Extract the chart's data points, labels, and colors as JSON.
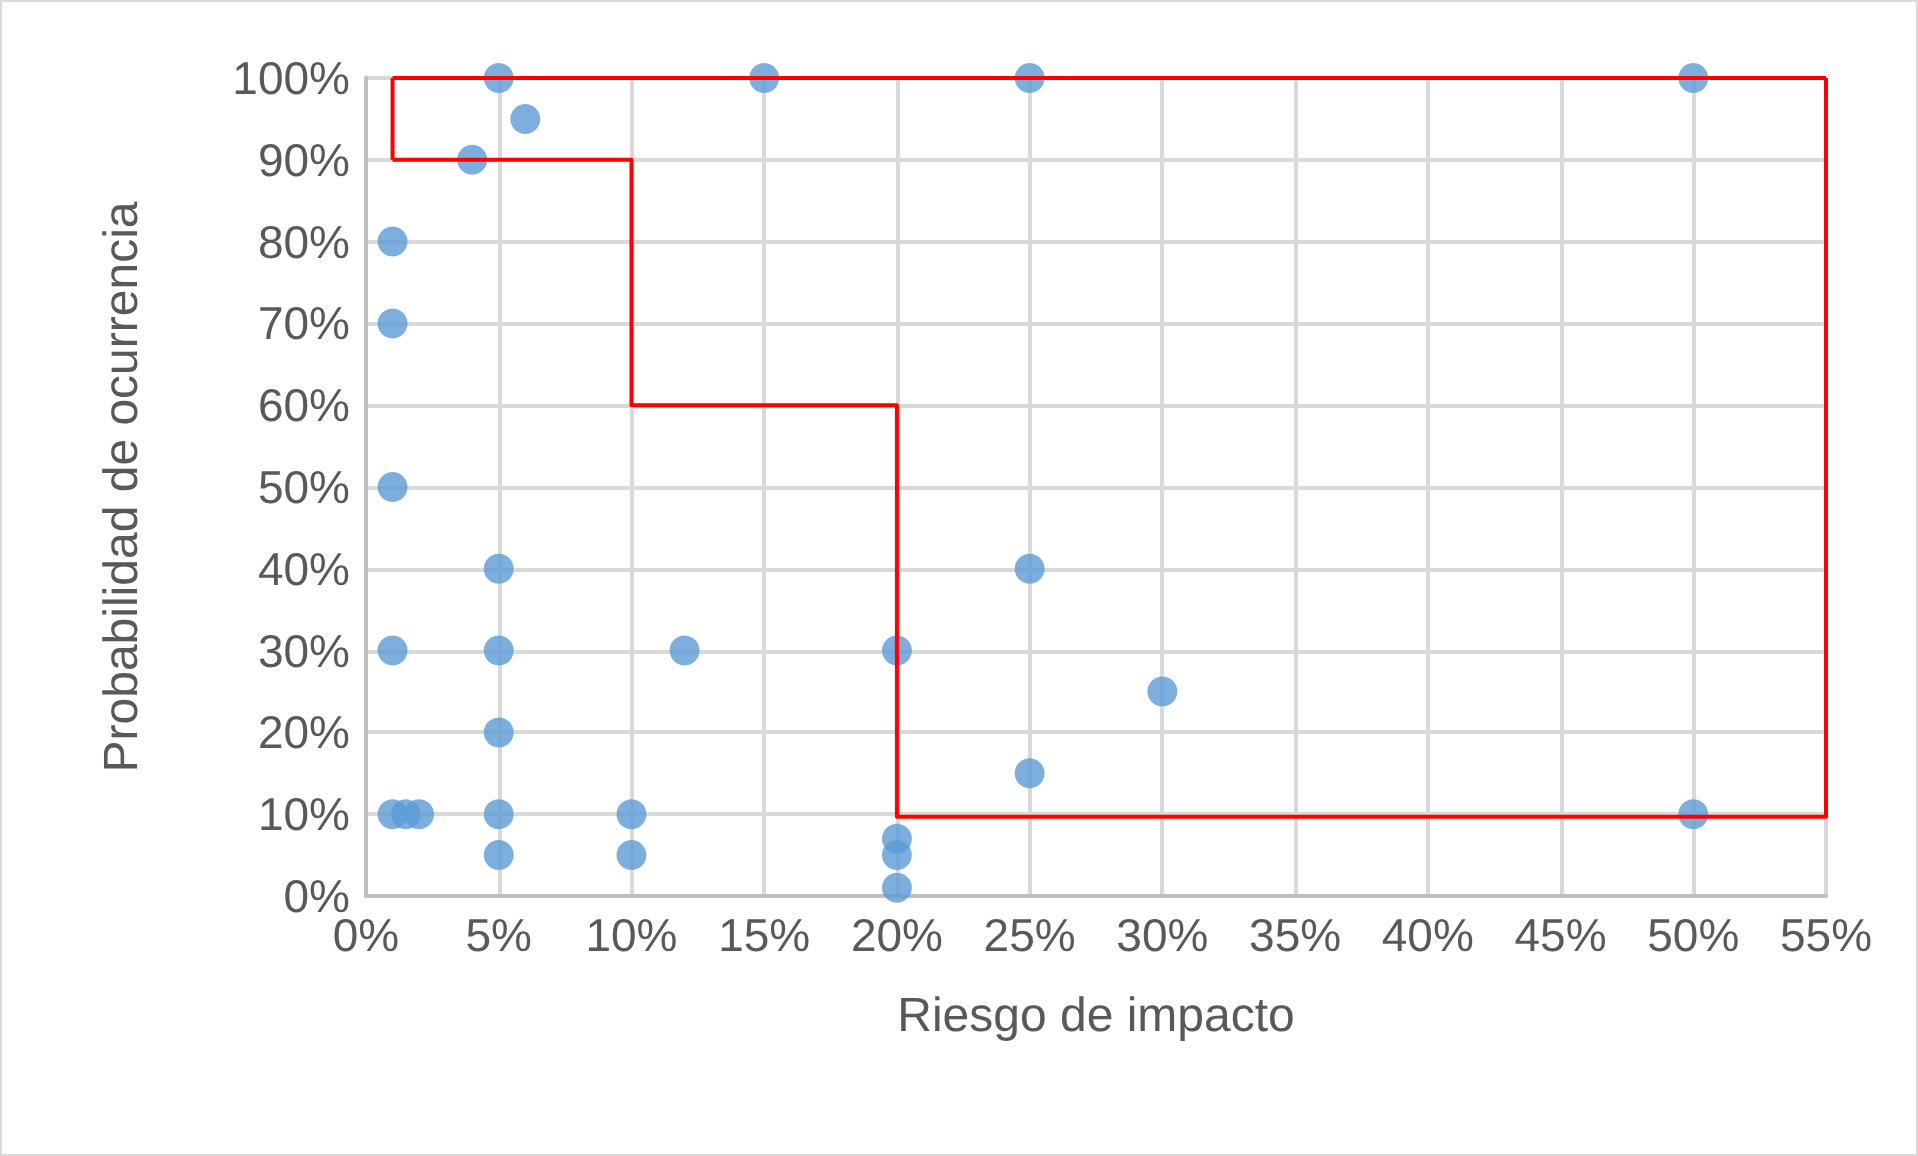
{
  "chart_data": {
    "type": "scatter",
    "xlabel": "Riesgo de impacto",
    "ylabel": "Probabilidad de ocurrencia",
    "xlim": [
      0,
      55
    ],
    "ylim": [
      0,
      100
    ],
    "xticks": [
      {
        "value": 0,
        "label": "0%"
      },
      {
        "value": 5,
        "label": "5%"
      },
      {
        "value": 10,
        "label": "10%"
      },
      {
        "value": 15,
        "label": "15%"
      },
      {
        "value": 20,
        "label": "20%"
      },
      {
        "value": 25,
        "label": "25%"
      },
      {
        "value": 30,
        "label": "30%"
      },
      {
        "value": 35,
        "label": "35%"
      },
      {
        "value": 40,
        "label": "40%"
      },
      {
        "value": 45,
        "label": "45%"
      },
      {
        "value": 50,
        "label": "50%"
      },
      {
        "value": 55,
        "label": "55%"
      }
    ],
    "yticks": [
      {
        "value": 0,
        "label": "0%"
      },
      {
        "value": 10,
        "label": "10%"
      },
      {
        "value": 20,
        "label": "20%"
      },
      {
        "value": 30,
        "label": "30%"
      },
      {
        "value": 40,
        "label": "40%"
      },
      {
        "value": 50,
        "label": "50%"
      },
      {
        "value": 60,
        "label": "60%"
      },
      {
        "value": 70,
        "label": "70%"
      },
      {
        "value": 80,
        "label": "80%"
      },
      {
        "value": 90,
        "label": "90%"
      },
      {
        "value": 100,
        "label": "100%"
      }
    ],
    "grid": true,
    "marker": "circle",
    "series": [
      {
        "type": "scatter",
        "color": "#5b9bd5",
        "x": [
          5,
          15,
          25,
          50,
          6,
          4,
          1,
          1,
          1,
          1,
          1,
          1.5,
          2,
          5,
          10,
          50,
          5,
          5,
          5,
          5,
          12,
          20,
          25,
          30,
          25,
          10,
          20,
          20,
          20
        ],
        "values": [
          100,
          100,
          100,
          100,
          95,
          90,
          80,
          70,
          50,
          30,
          10,
          10,
          10,
          10,
          10,
          10,
          40,
          30,
          20,
          5,
          30,
          30,
          40,
          25,
          15,
          5,
          7,
          5,
          1
        ]
      },
      {
        "type": "line",
        "color": "#ff0000",
        "marker": "none",
        "line_style": "solid",
        "x": [
          1,
          55
        ],
        "values": [
          100,
          100
        ]
      },
      {
        "type": "step",
        "color": "#ff0000",
        "marker": "none",
        "line_style": "solid",
        "x": [
          1,
          10,
          20,
          55
        ],
        "values": [
          90,
          60,
          9.7,
          100
        ]
      },
      {
        "type": "line",
        "color": "#ff0000",
        "marker": "none",
        "line_style": "solid",
        "x": [
          1,
          1
        ],
        "values": [
          90,
          100
        ]
      }
    ]
  }
}
